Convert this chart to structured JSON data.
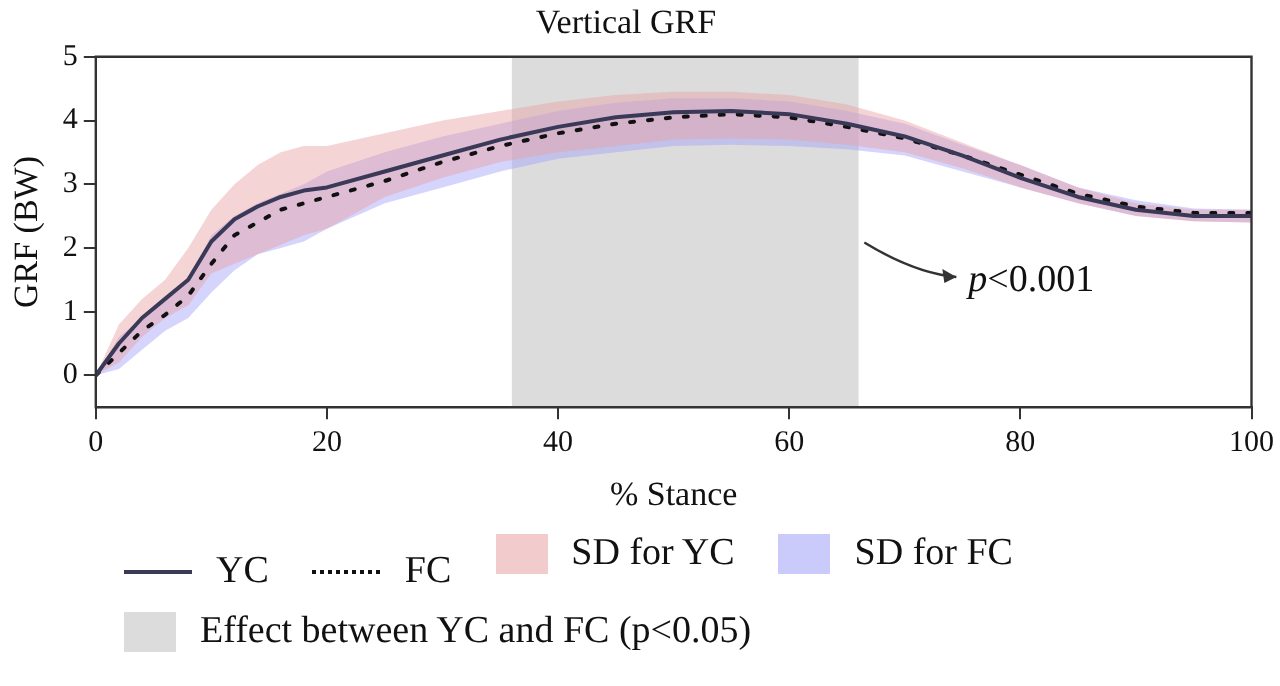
{
  "chart_data": {
    "type": "line",
    "title": "Vertical GRF",
    "xlabel": "% Stance",
    "ylabel": "GRF (BW)",
    "x": [
      0,
      2,
      4,
      6,
      8,
      10,
      12,
      14,
      16,
      18,
      20,
      25,
      30,
      35,
      40,
      45,
      50,
      55,
      60,
      65,
      70,
      75,
      80,
      85,
      90,
      95,
      100
    ],
    "series": [
      {
        "name": "YC",
        "color": "#3a3a58",
        "line_style": "solid",
        "values": [
          0,
          0.5,
          0.9,
          1.2,
          1.5,
          2.1,
          2.45,
          2.65,
          2.8,
          2.9,
          2.95,
          3.2,
          3.45,
          3.7,
          3.9,
          4.05,
          4.13,
          4.15,
          4.1,
          3.95,
          3.75,
          3.45,
          3.1,
          2.8,
          2.6,
          2.5,
          2.5
        ],
        "lower": [
          0,
          0.2,
          0.6,
          0.9,
          1.1,
          1.6,
          1.75,
          1.9,
          2.05,
          2.2,
          2.3,
          2.8,
          3.1,
          3.35,
          3.5,
          3.6,
          3.7,
          3.72,
          3.7,
          3.62,
          3.5,
          3.25,
          2.95,
          2.7,
          2.5,
          2.42,
          2.4
        ],
        "upper": [
          0,
          0.8,
          1.2,
          1.5,
          2.0,
          2.6,
          3.0,
          3.3,
          3.5,
          3.6,
          3.6,
          3.8,
          4.0,
          4.15,
          4.3,
          4.4,
          4.45,
          4.45,
          4.4,
          4.25,
          4.0,
          3.65,
          3.3,
          2.95,
          2.7,
          2.6,
          2.6
        ]
      },
      {
        "name": "FC",
        "color": "#111111",
        "line_style": "dotted",
        "values": [
          0,
          0.35,
          0.7,
          0.95,
          1.25,
          1.75,
          2.2,
          2.4,
          2.6,
          2.7,
          2.8,
          3.05,
          3.35,
          3.6,
          3.8,
          3.95,
          4.05,
          4.1,
          4.05,
          3.9,
          3.72,
          3.45,
          3.15,
          2.85,
          2.65,
          2.55,
          2.55
        ],
        "lower": [
          0,
          0.1,
          0.4,
          0.7,
          0.9,
          1.3,
          1.65,
          1.9,
          2.0,
          2.1,
          2.3,
          2.7,
          2.95,
          3.2,
          3.4,
          3.5,
          3.6,
          3.62,
          3.6,
          3.55,
          3.45,
          3.2,
          2.95,
          2.7,
          2.5,
          2.42,
          2.4
        ],
        "upper": [
          0,
          0.6,
          0.9,
          1.2,
          1.5,
          2.2,
          2.5,
          2.7,
          2.85,
          3.0,
          3.2,
          3.5,
          3.75,
          3.95,
          4.15,
          4.28,
          4.35,
          4.35,
          4.3,
          4.15,
          3.95,
          3.62,
          3.3,
          2.95,
          2.75,
          2.62,
          2.6
        ]
      }
    ],
    "xlim": [
      0,
      100
    ],
    "xticks": [
      0,
      20,
      40,
      60,
      80,
      100
    ],
    "ylim": [
      -0.5,
      5
    ],
    "yticks": [
      0,
      1,
      2,
      3,
      4,
      5
    ],
    "bands": [
      {
        "axis": "x",
        "from": 36,
        "to": 66,
        "label": "Effect between YC and FC (p<0.05)",
        "color": "#dcdcdc"
      }
    ],
    "annotations": [
      "p<0.001",
      "SD for YC",
      "SD for FC"
    ],
    "grid": false,
    "legend": "bottom",
    "marker": "none"
  }
}
